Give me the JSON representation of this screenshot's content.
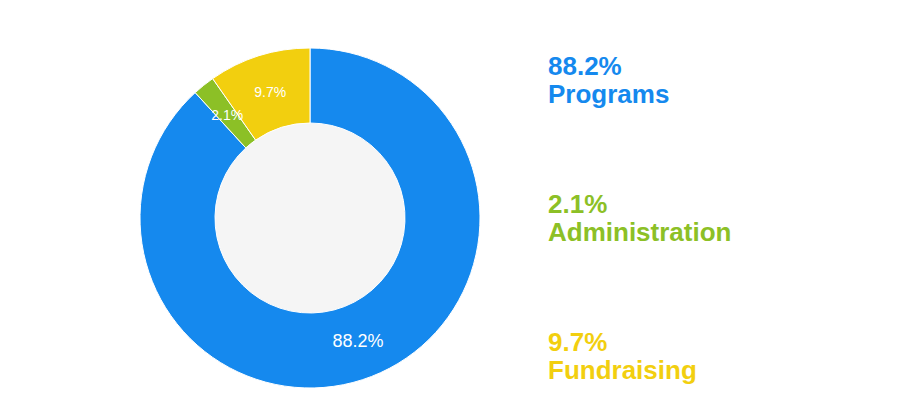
{
  "chart_data": {
    "type": "donut",
    "categories": [
      "Programs",
      "Administration",
      "Fundraising"
    ],
    "values": [
      88.2,
      2.1,
      9.7
    ],
    "value_labels": [
      "88.2%",
      "2.1%",
      "9.7%"
    ],
    "colors": [
      "#1589ee",
      "#8cc026",
      "#f2cf0f"
    ],
    "data_labels": true
  }
}
